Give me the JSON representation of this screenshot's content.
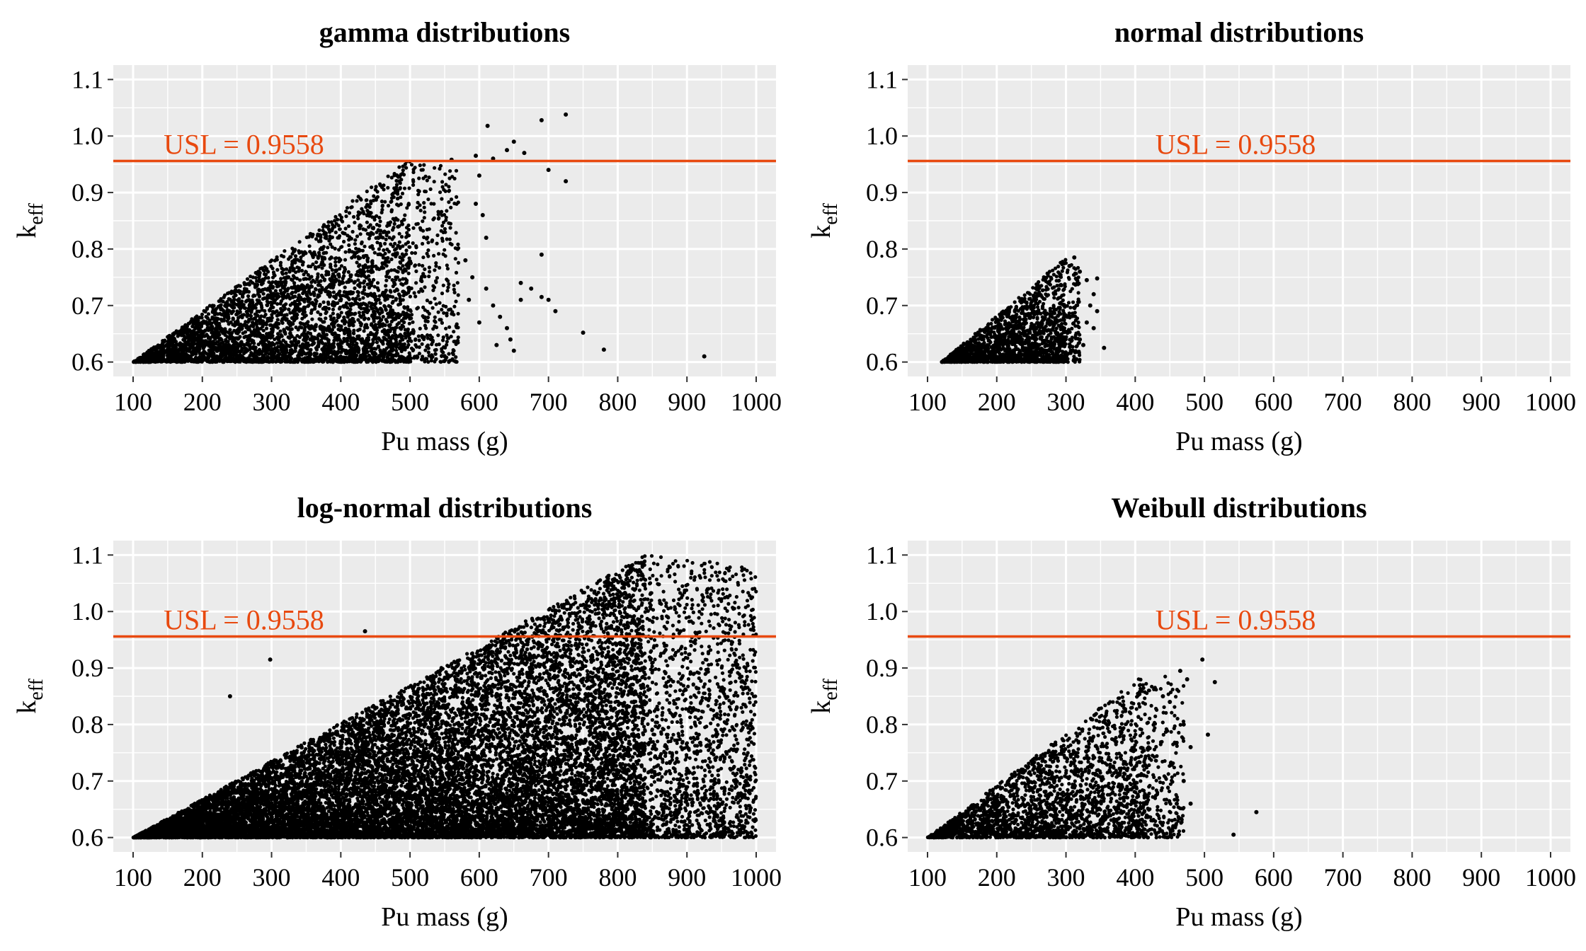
{
  "figure": {
    "usl_color": "#E8490F",
    "panel_bg": "#EBEBEB",
    "grid_color": "#FFFFFF",
    "point_color": "#000000"
  },
  "chart_data": [
    {
      "type": "scatter",
      "title": "gamma distributions",
      "xlabel": "Pu mass (g)",
      "ylabel": "k",
      "ylabel_sub": "eff",
      "xlim": [
        100,
        1000
      ],
      "ylim": [
        0.6,
        1.1
      ],
      "xticks": [
        100,
        200,
        300,
        400,
        500,
        600,
        700,
        800,
        900,
        1000
      ],
      "yticks": [
        0.6,
        0.7,
        0.8,
        0.9,
        1.0,
        1.1
      ],
      "xtick_labels": [
        "100",
        "200",
        "300",
        "400",
        "500",
        "600",
        "700",
        "800",
        "900",
        "1000"
      ],
      "ytick_labels": [
        "0.6",
        "0.7",
        "0.8",
        "0.9",
        "1.0",
        "1.1"
      ],
      "grid": true,
      "usl": {
        "value": 0.9558,
        "label": "USL = 0.9558",
        "label_x": 260
      },
      "cloud": {
        "xmin": 100,
        "xcore": 500,
        "xmax": 570,
        "ymin": 0.6,
        "ymax": 0.96,
        "density": 4200
      },
      "outliers": [
        [
          560,
          0.958
        ],
        [
          595,
          0.965
        ],
        [
          612,
          1.018
        ],
        [
          620,
          0.96
        ],
        [
          640,
          0.975
        ],
        [
          650,
          0.99
        ],
        [
          665,
          0.97
        ],
        [
          690,
          1.028
        ],
        [
          700,
          0.94
        ],
        [
          725,
          1.038
        ],
        [
          725,
          0.92
        ],
        [
          690,
          0.79
        ],
        [
          690,
          0.715
        ],
        [
          700,
          0.71
        ],
        [
          710,
          0.69
        ],
        [
          660,
          0.74
        ],
        [
          660,
          0.71
        ],
        [
          675,
          0.73
        ],
        [
          600,
          0.93
        ],
        [
          605,
          0.86
        ],
        [
          610,
          0.82
        ],
        [
          610,
          0.73
        ],
        [
          620,
          0.7
        ],
        [
          625,
          0.63
        ],
        [
          630,
          0.68
        ],
        [
          640,
          0.66
        ],
        [
          645,
          0.64
        ],
        [
          650,
          0.62
        ],
        [
          595,
          0.88
        ],
        [
          580,
          0.78
        ],
        [
          590,
          0.75
        ],
        [
          585,
          0.71
        ],
        [
          600,
          0.67
        ],
        [
          750,
          0.652
        ],
        [
          780,
          0.622
        ],
        [
          925,
          0.61
        ]
      ]
    },
    {
      "type": "scatter",
      "title": "normal distributions",
      "xlabel": "Pu mass (g)",
      "ylabel": "k",
      "ylabel_sub": "eff",
      "xlim": [
        100,
        1000
      ],
      "ylim": [
        0.6,
        1.1
      ],
      "xticks": [
        100,
        200,
        300,
        400,
        500,
        600,
        700,
        800,
        900,
        1000
      ],
      "yticks": [
        0.6,
        0.7,
        0.8,
        0.9,
        1.0,
        1.1
      ],
      "xtick_labels": [
        "100",
        "200",
        "300",
        "400",
        "500",
        "600",
        "700",
        "800",
        "900",
        "1000"
      ],
      "ytick_labels": [
        "0.6",
        "0.7",
        "0.8",
        "0.9",
        "1.0",
        "1.1"
      ],
      "grid": true,
      "usl": {
        "value": 0.9558,
        "label": "USL = 0.9558",
        "label_x": 545
      },
      "cloud": {
        "xmin": 120,
        "xcore": 300,
        "xmax": 320,
        "ymin": 0.6,
        "ymax": 0.785,
        "density": 1800
      },
      "outliers": [
        [
          312,
          0.785
        ],
        [
          305,
          0.77
        ],
        [
          320,
          0.76
        ],
        [
          330,
          0.745
        ],
        [
          345,
          0.748
        ],
        [
          340,
          0.72
        ],
        [
          335,
          0.7
        ],
        [
          345,
          0.69
        ],
        [
          330,
          0.67
        ],
        [
          340,
          0.66
        ],
        [
          355,
          0.625
        ],
        [
          320,
          0.64
        ],
        [
          310,
          0.62
        ],
        [
          325,
          0.63
        ],
        [
          315,
          0.605
        ]
      ]
    },
    {
      "type": "scatter",
      "title": "log-normal distributions",
      "xlabel": "Pu mass (g)",
      "ylabel": "k",
      "ylabel_sub": "eff",
      "xlim": [
        100,
        1000
      ],
      "ylim": [
        0.6,
        1.1
      ],
      "xticks": [
        100,
        200,
        300,
        400,
        500,
        600,
        700,
        800,
        900,
        1000
      ],
      "yticks": [
        0.6,
        0.7,
        0.8,
        0.9,
        1.0,
        1.1
      ],
      "xtick_labels": [
        "100",
        "200",
        "300",
        "400",
        "500",
        "600",
        "700",
        "800",
        "900",
        "1000"
      ],
      "ytick_labels": [
        "0.6",
        "0.7",
        "0.8",
        "0.9",
        "1.0",
        "1.1"
      ],
      "grid": true,
      "usl": {
        "value": 0.9558,
        "label": "USL = 0.9558",
        "label_x": 260
      },
      "cloud": {
        "xmin": 100,
        "xcore": 840,
        "xmax": 1000,
        "ymin": 0.6,
        "ymax": 1.1,
        "density": 16000,
        "flat_top": 1.1
      },
      "outliers": [
        [
          435,
          0.965
        ],
        [
          298,
          0.915
        ],
        [
          240,
          0.85
        ]
      ]
    },
    {
      "type": "scatter",
      "title": "Weibull distributions",
      "xlabel": "Pu mass (g)",
      "ylabel": "k",
      "ylabel_sub": "eff",
      "xlim": [
        100,
        1000
      ],
      "ylim": [
        0.6,
        1.1
      ],
      "xticks": [
        100,
        200,
        300,
        400,
        500,
        600,
        700,
        800,
        900,
        1000
      ],
      "yticks": [
        0.6,
        0.7,
        0.8,
        0.9,
        1.0,
        1.1
      ],
      "xtick_labels": [
        "100",
        "200",
        "300",
        "400",
        "500",
        "600",
        "700",
        "800",
        "900",
        "1000"
      ],
      "ytick_labels": [
        "0.6",
        "0.7",
        "0.8",
        "0.9",
        "1.0",
        "1.1"
      ],
      "grid": true,
      "usl": {
        "value": 0.9558,
        "label": "USL = 0.9558",
        "label_x": 545
      },
      "cloud": {
        "xmin": 100,
        "xcore": 420,
        "xmax": 470,
        "ymin": 0.6,
        "ymax": 0.895,
        "density": 2600
      },
      "outliers": [
        [
          465,
          0.895
        ],
        [
          475,
          0.88
        ],
        [
          497,
          0.915
        ],
        [
          515,
          0.875
        ],
        [
          505,
          0.782
        ],
        [
          575,
          0.645
        ],
        [
          542,
          0.605
        ],
        [
          470,
          0.8
        ],
        [
          480,
          0.76
        ],
        [
          470,
          0.7
        ],
        [
          460,
          0.66
        ],
        [
          480,
          0.66
        ],
        [
          455,
          0.62
        ],
        [
          440,
          0.85
        ],
        [
          450,
          0.84
        ]
      ]
    }
  ]
}
